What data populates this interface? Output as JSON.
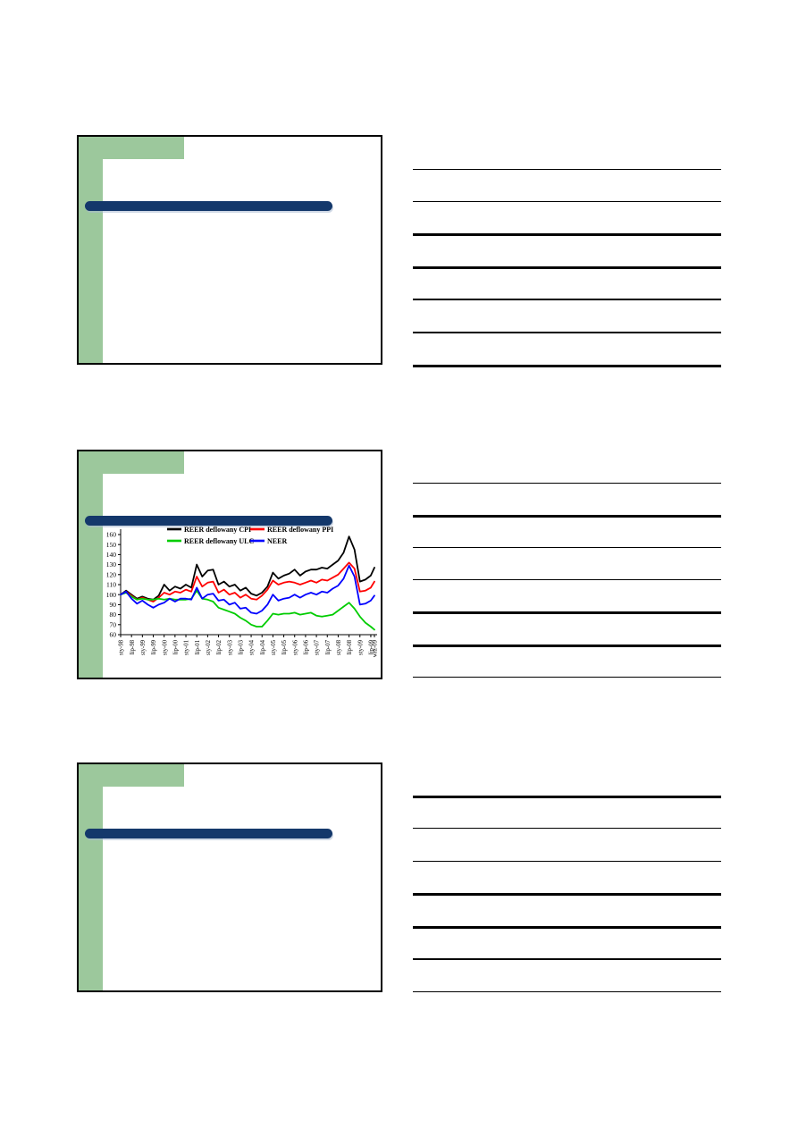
{
  "theme": {
    "green_accent": "#9cc89c",
    "navy_accent": "#14386b",
    "line_color": "#000000",
    "page_background": "#ffffff"
  },
  "slides": [
    {
      "id": 1,
      "content": "blank title slide template"
    },
    {
      "id": 2,
      "content": "chart slide"
    },
    {
      "id": 3,
      "content": "blank title slide template"
    }
  ],
  "notes": {
    "groups": 3,
    "lines_per_group": 7
  },
  "chart_data": {
    "type": "line",
    "title": "",
    "xlabel": "",
    "ylabel": "",
    "ylim": [
      60,
      160
    ],
    "y_ticks": [
      60,
      70,
      80,
      90,
      100,
      110,
      120,
      130,
      140,
      150,
      160
    ],
    "grid": false,
    "legend_position": "top",
    "x_tick_labels": [
      "sty-98",
      "lip-98",
      "sty-99",
      "lip-99",
      "sty-00",
      "lip-00",
      "sty-01",
      "lip-01",
      "sty-02",
      "lip-02",
      "sty-03",
      "lip-03",
      "sty-04",
      "lip-04",
      "sty-05",
      "lip-05",
      "sty-06",
      "lip-06",
      "sty-07",
      "lip-07",
      "sty-08",
      "lip-08",
      "sty-09",
      "lip-09",
      "wrz-09"
    ],
    "x": [
      "sty-98",
      "kwi-98",
      "lip-98",
      "paź-98",
      "sty-99",
      "kwi-99",
      "lip-99",
      "paź-99",
      "sty-00",
      "kwi-00",
      "lip-00",
      "paź-00",
      "sty-01",
      "kwi-01",
      "lip-01",
      "paź-01",
      "sty-02",
      "kwi-02",
      "lip-02",
      "paź-02",
      "sty-03",
      "kwi-03",
      "lip-03",
      "paź-03",
      "sty-04",
      "kwi-04",
      "lip-04",
      "paź-04",
      "sty-05",
      "kwi-05",
      "lip-05",
      "paź-05",
      "sty-06",
      "kwi-06",
      "lip-06",
      "paź-06",
      "sty-07",
      "kwi-07",
      "lip-07",
      "paź-07",
      "sty-08",
      "kwi-08",
      "lip-08",
      "paź-08",
      "sty-09",
      "kwi-09",
      "lip-09",
      "wrz-09"
    ],
    "series": [
      {
        "name": "REER deflowany CPI",
        "color": "#000000",
        "values": [
          100,
          104,
          100,
          96,
          98,
          96,
          95,
          99,
          110,
          104,
          108,
          106,
          110,
          107,
          130,
          118,
          124,
          125,
          110,
          113,
          108,
          110,
          104,
          107,
          101,
          99,
          102,
          108,
          122,
          116,
          119,
          121,
          125,
          119,
          123,
          125,
          125,
          127,
          126,
          130,
          134,
          142,
          158,
          145,
          113,
          115,
          119,
          127
        ]
      },
      {
        "name": "REER deflowany PPI",
        "color": "#ff0000",
        "values": [
          100,
          103,
          99,
          95,
          97,
          95,
          93,
          97,
          102,
          100,
          103,
          102,
          105,
          103,
          118,
          108,
          112,
          113,
          102,
          105,
          100,
          102,
          97,
          100,
          96,
          95,
          99,
          105,
          114,
          110,
          112,
          113,
          112,
          110,
          112,
          114,
          112,
          115,
          114,
          117,
          120,
          126,
          132,
          126,
          103,
          104,
          107,
          113
        ]
      },
      {
        "name": "REER deflowany ULC",
        "color": "#00cc00",
        "values": [
          100,
          102,
          98,
          95,
          96,
          95,
          95,
          96,
          95,
          96,
          95,
          95,
          95,
          96,
          104,
          96,
          95,
          93,
          87,
          85,
          83,
          81,
          77,
          74,
          70,
          68,
          68,
          74,
          81,
          80,
          81,
          81,
          82,
          80,
          81,
          82,
          79,
          78,
          79,
          80,
          84,
          88,
          92,
          86,
          78,
          72,
          68,
          65
        ]
      },
      {
        "name": "NEER",
        "color": "#0000ff",
        "values": [
          100,
          103,
          96,
          91,
          94,
          90,
          87,
          90,
          92,
          96,
          93,
          96,
          96,
          95,
          107,
          96,
          100,
          101,
          94,
          95,
          90,
          92,
          86,
          87,
          82,
          81,
          84,
          90,
          100,
          94,
          96,
          97,
          100,
          97,
          100,
          102,
          100,
          103,
          102,
          106,
          109,
          116,
          129,
          118,
          90,
          91,
          94,
          99
        ]
      }
    ]
  }
}
